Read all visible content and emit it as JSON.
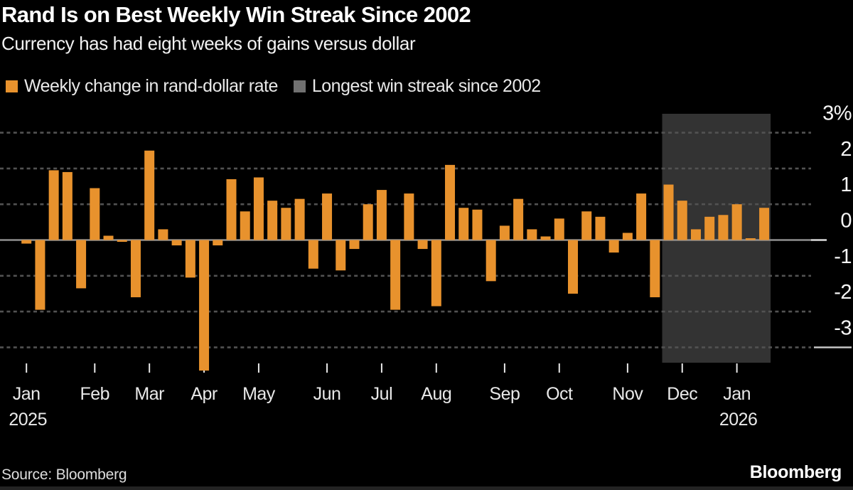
{
  "header": {
    "title": "Rand Is on Best Weekly Win Streak Since 2002",
    "subtitle": "Currency has had eight weeks of gains versus dollar"
  },
  "legend": {
    "items": [
      {
        "label": "Weekly change in rand-dollar rate",
        "color": "#e8922d"
      },
      {
        "label": "Longest win streak since 2002",
        "color": "#717171"
      }
    ]
  },
  "chart_data": {
    "type": "bar",
    "title": "Rand Is on Best Weekly Win Streak Since 2002",
    "subtitle": "Currency has had eight weeks of gains versus dollar",
    "xlabel": "",
    "ylabel": "%",
    "unit": "percent",
    "x_unit": "week",
    "ylim": [
      -3.45,
      3.53
    ],
    "grid": "dotted-horizontal",
    "legend_position": "top-left",
    "bar_color": "#e8922d",
    "highlight_color": "#333333",
    "values": [
      -0.1,
      -1.95,
      1.95,
      1.9,
      -1.35,
      1.45,
      0.12,
      -0.05,
      -1.6,
      2.5,
      0.3,
      -0.15,
      -1.05,
      -3.65,
      -0.15,
      1.7,
      0.8,
      1.75,
      1.1,
      0.9,
      1.15,
      -0.8,
      1.3,
      -0.85,
      -0.25,
      1.0,
      1.4,
      -1.95,
      1.3,
      -0.25,
      -1.85,
      2.1,
      0.9,
      0.85,
      -1.15,
      0.4,
      1.15,
      0.3,
      0.1,
      0.6,
      -1.5,
      0.8,
      0.65,
      -0.35,
      0.2,
      1.3,
      -1.6,
      1.55,
      1.1,
      0.3,
      0.65,
      0.7,
      1.0,
      0.05,
      0.9
    ],
    "month_ticks": [
      {
        "index": 0,
        "label": "Jan",
        "sublabel": "2025"
      },
      {
        "index": 5,
        "label": "Feb"
      },
      {
        "index": 9,
        "label": "Mar"
      },
      {
        "index": 13,
        "label": "Apr"
      },
      {
        "index": 17,
        "label": "May"
      },
      {
        "index": 22,
        "label": "Jun"
      },
      {
        "index": 26,
        "label": "Jul"
      },
      {
        "index": 30,
        "label": "Aug"
      },
      {
        "index": 35,
        "label": "Sep"
      },
      {
        "index": 39,
        "label": "Oct"
      },
      {
        "index": 44,
        "label": "Nov"
      },
      {
        "index": 48,
        "label": "Dec"
      },
      {
        "index": 52,
        "label": "Jan",
        "sublabel": "2026"
      }
    ],
    "y_ticks": [
      {
        "value": 3,
        "label": "3%"
      },
      {
        "value": 2,
        "label": "2"
      },
      {
        "value": 1,
        "label": "1"
      },
      {
        "value": 0,
        "label": "0"
      },
      {
        "value": -1,
        "label": "-1"
      },
      {
        "value": -2,
        "label": "-2"
      },
      {
        "value": -3,
        "label": "-3"
      }
    ],
    "highlight": {
      "start_index": 47,
      "end_index": 54,
      "label": "Longest win streak since 2002",
      "weeks": 8
    }
  },
  "footer": {
    "source": "Source: Bloomberg",
    "logo": "Bloomberg"
  }
}
